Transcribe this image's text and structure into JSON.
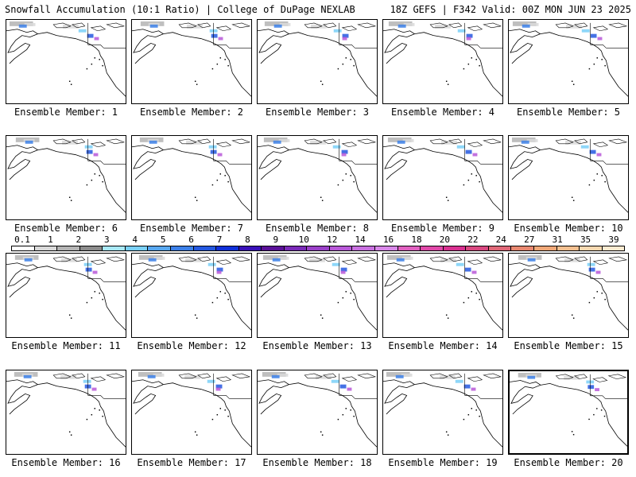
{
  "header": {
    "title": "Snowfall Accumulation (10:1 Ratio) | College of DuPage NEXLAB",
    "run": "18Z GEFS | F342 Valid: 00Z MON JUN 23 2025"
  },
  "panels": [
    {
      "label": "Ensemble Member: 1"
    },
    {
      "label": "Ensemble Member: 2"
    },
    {
      "label": "Ensemble Member: 3"
    },
    {
      "label": "Ensemble Member: 4"
    },
    {
      "label": "Ensemble Member: 5"
    },
    {
      "label": "Ensemble Member: 6"
    },
    {
      "label": "Ensemble Member: 7"
    },
    {
      "label": "Ensemble Member: 8"
    },
    {
      "label": "Ensemble Member: 9"
    },
    {
      "label": "Ensemble Member: 10"
    },
    {
      "label": "Ensemble Member: 11"
    },
    {
      "label": "Ensemble Member: 12"
    },
    {
      "label": "Ensemble Member: 13"
    },
    {
      "label": "Ensemble Member: 14"
    },
    {
      "label": "Ensemble Member: 15"
    },
    {
      "label": "Ensemble Member: 16"
    },
    {
      "label": "Ensemble Member: 17"
    },
    {
      "label": "Ensemble Member: 18"
    },
    {
      "label": "Ensemble Member: 19"
    },
    {
      "label": "Ensemble Member: 20"
    }
  ],
  "legend": {
    "ticks": [
      "0.1",
      "1",
      "2",
      "3",
      "4",
      "5",
      "6",
      "7",
      "8",
      "9",
      "10",
      "12",
      "14",
      "16",
      "18",
      "20",
      "22",
      "24",
      "27",
      "31",
      "35",
      "39"
    ],
    "colors": [
      "#ffffff",
      "#d9d9d9",
      "#b4b4b4",
      "#8c8c8c",
      "#a8e8f8",
      "#7ad0f8",
      "#58a8f0",
      "#3c80e8",
      "#2458e0",
      "#1030d8",
      "#3a10b8",
      "#5a1098",
      "#7a2ab8",
      "#9a40c8",
      "#b858d8",
      "#c870e0",
      "#d888e8",
      "#e060c0",
      "#e048a8",
      "#d83090",
      "#d84880",
      "#e06878",
      "#e88870",
      "#f0a878",
      "#f4c090",
      "#f8d8b0",
      "#fcead0"
    ]
  }
}
